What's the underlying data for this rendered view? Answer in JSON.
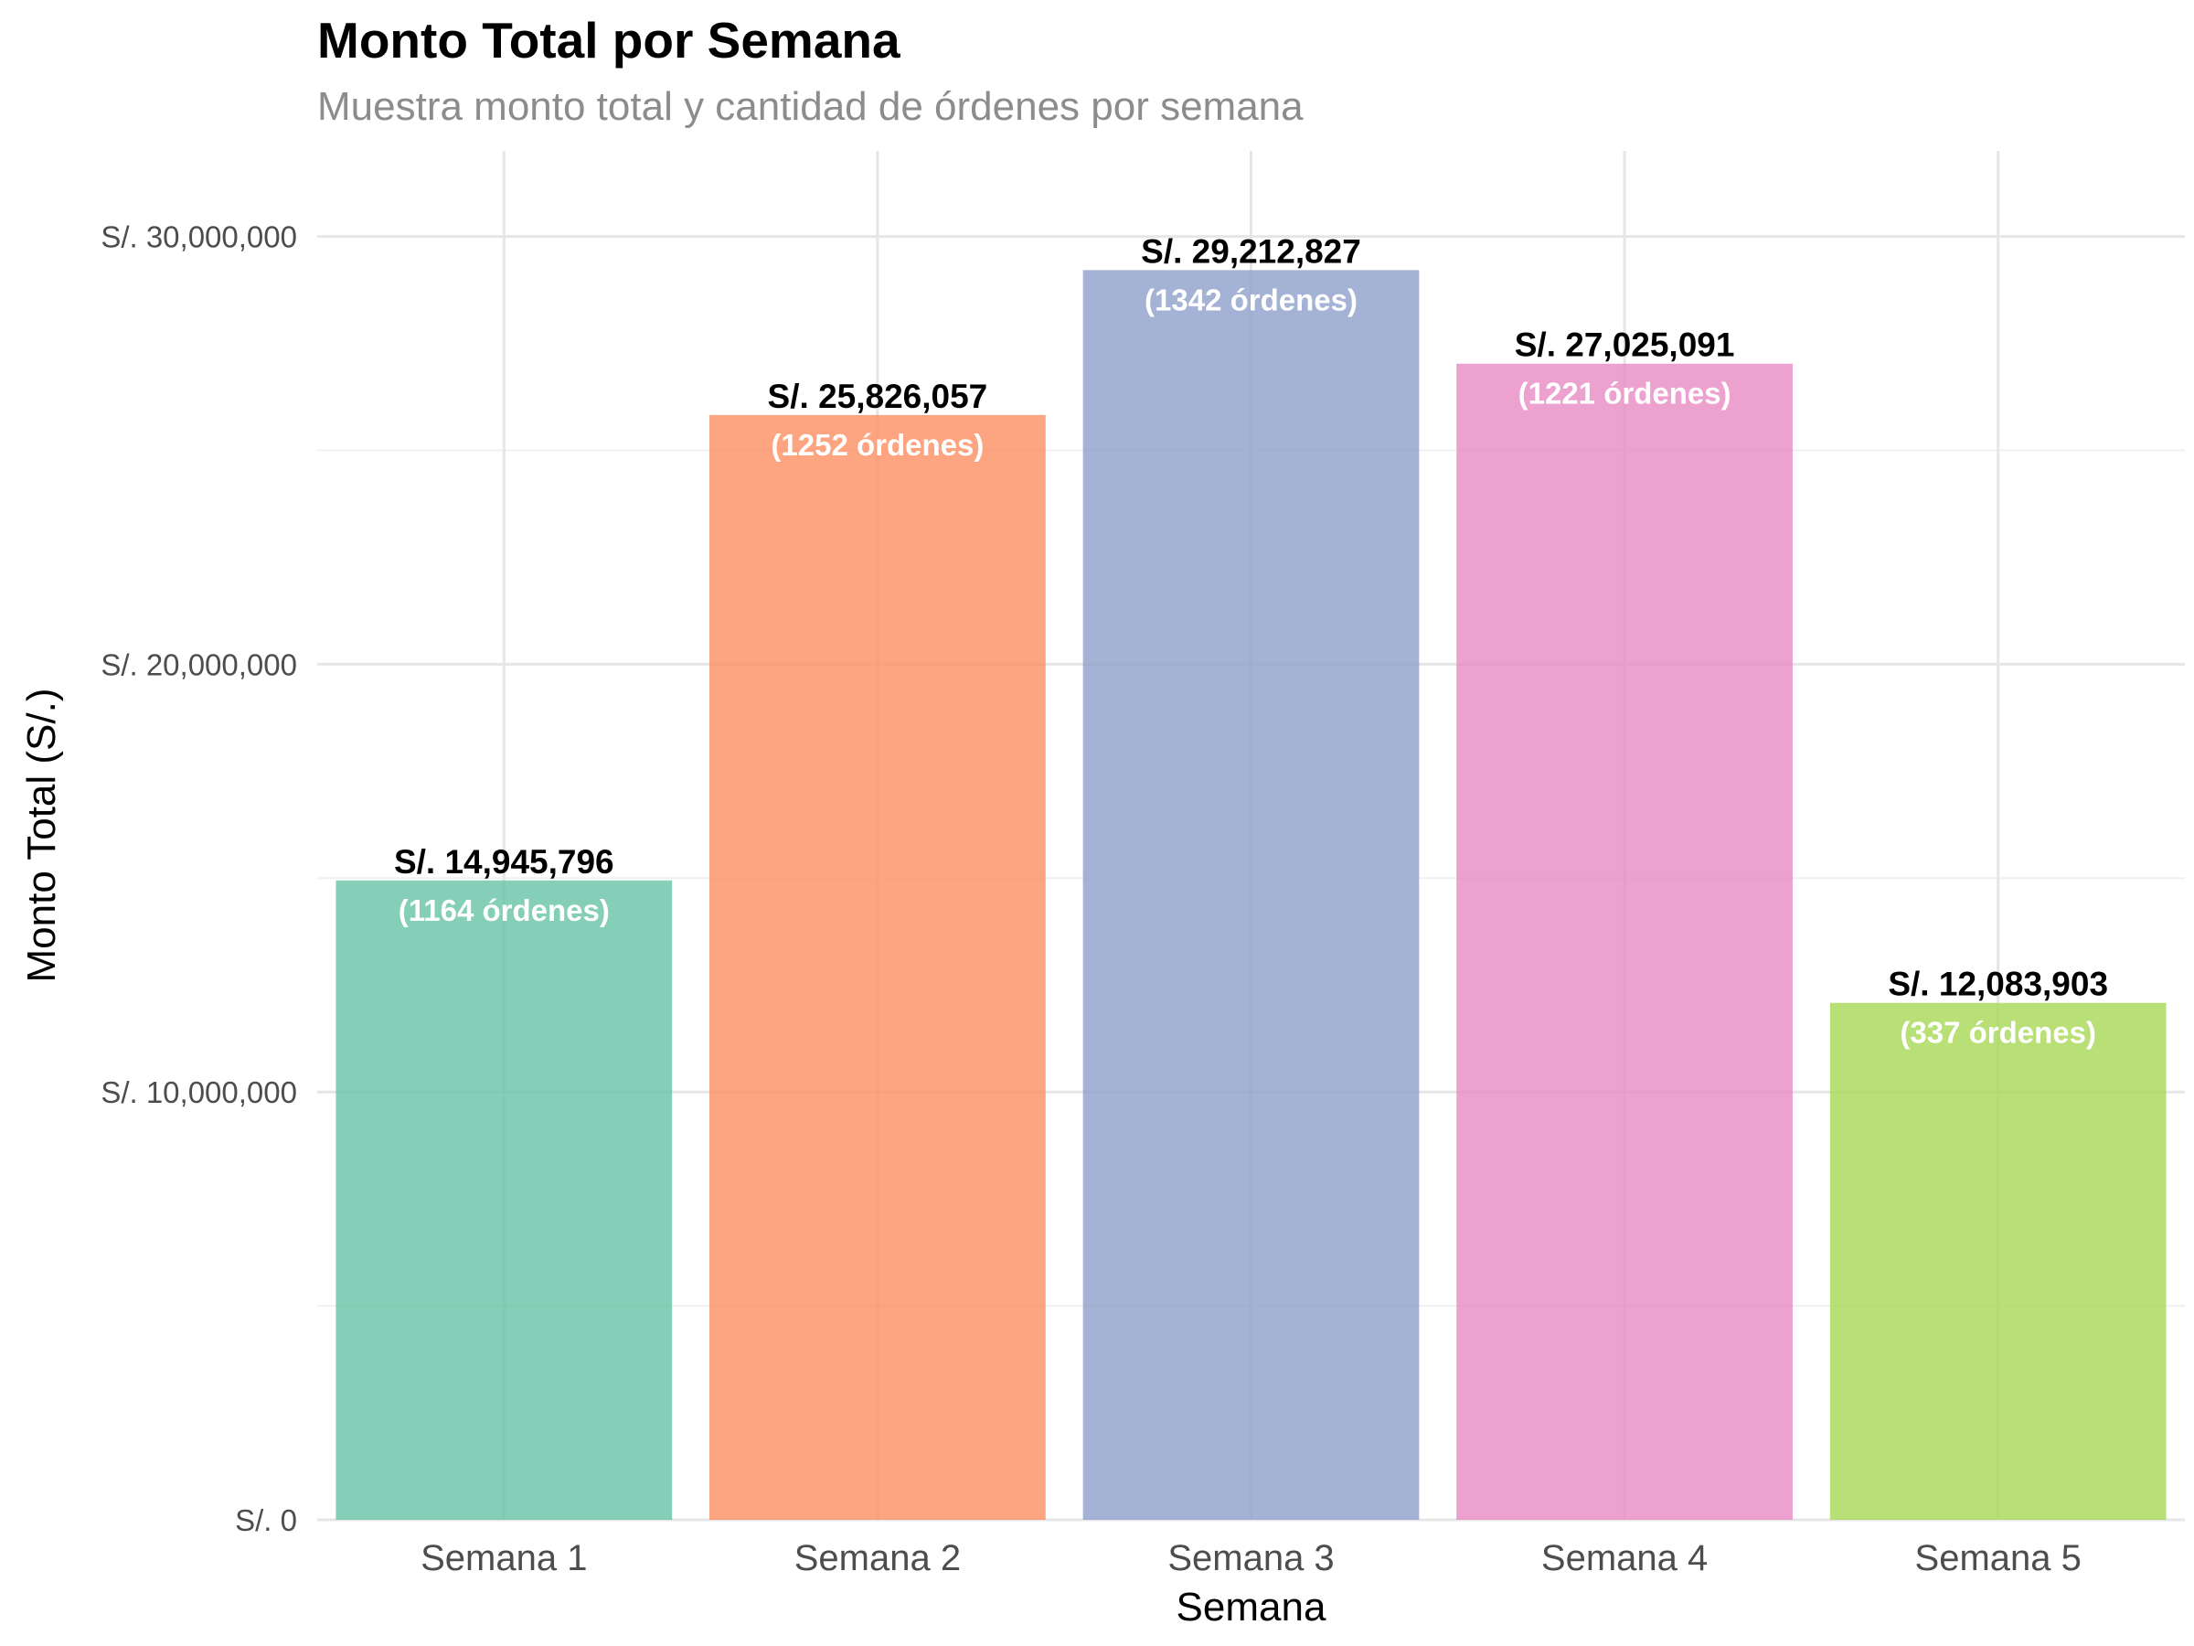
{
  "chart_data": {
    "type": "bar",
    "title": "Monto Total por Semana",
    "subtitle": "Muestra monto total y cantidad de órdenes por semana",
    "xlabel": "Semana",
    "ylabel": "Monto Total (S/.)",
    "categories": [
      "Semana 1",
      "Semana 2",
      "Semana 3",
      "Semana 4",
      "Semana 5"
    ],
    "values": [
      14945796,
      25826057,
      29212827,
      27025091,
      12083903
    ],
    "value_labels": [
      "S/. 14,945,796",
      "S/. 25,826,057",
      "S/. 29,212,827",
      "S/. 27,025,091",
      "S/. 12,083,903"
    ],
    "order_labels": [
      "(1164 órdenes)",
      "(1252 órdenes)",
      "(1342 órdenes)",
      "(1221 órdenes)",
      "(337 órdenes)"
    ],
    "colors": [
      "#66c2a5",
      "#fc8d62",
      "#8da0cb",
      "#e78ac3",
      "#a6d854"
    ],
    "ylim": [
      0,
      32000000
    ],
    "y_ticks": [
      0,
      10000000,
      20000000,
      30000000
    ],
    "y_tick_labels": [
      "S/. 0",
      "S/. 10,000,000",
      "S/. 20,000,000",
      "S/. 30,000,000"
    ],
    "grid": true,
    "legend": "none"
  }
}
